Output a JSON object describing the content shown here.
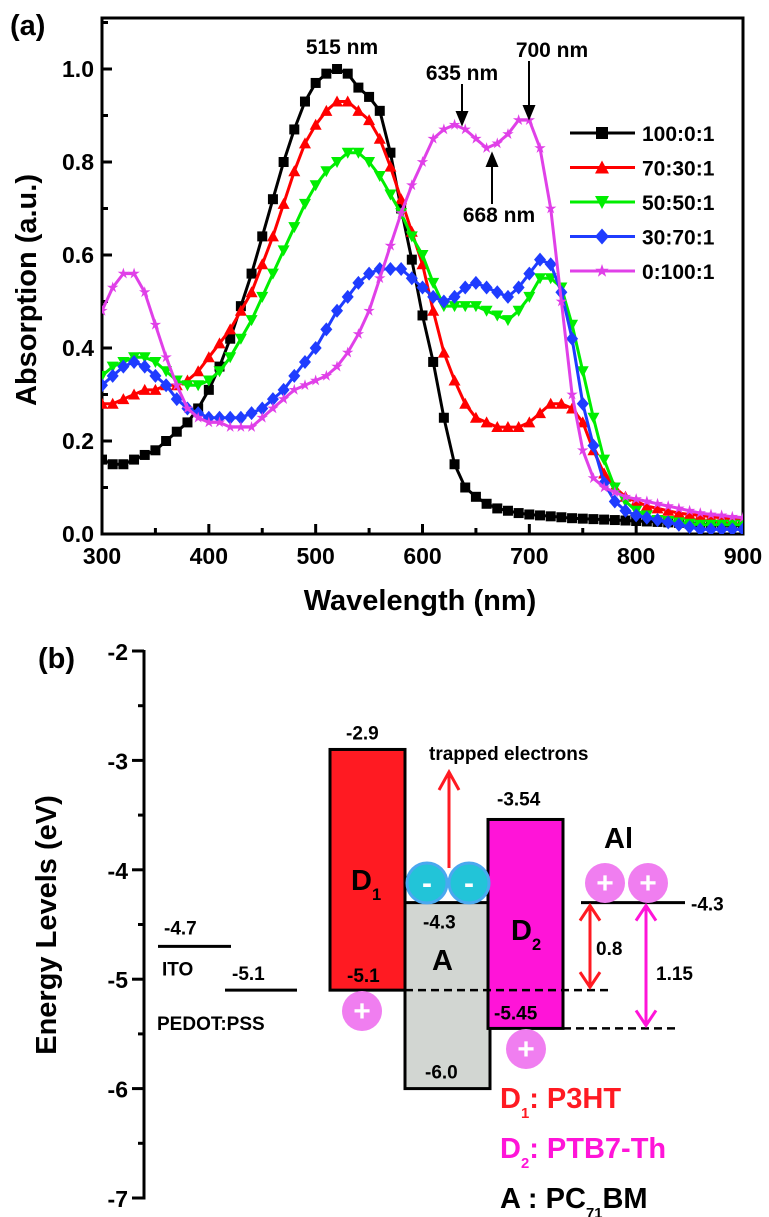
{
  "chart_data": [
    {
      "type": "line",
      "panel_label": "(a)",
      "xlabel": "Wavelength (nm)",
      "ylabel": "Absorption (a.u.)",
      "xlim": [
        300,
        900
      ],
      "ylim": [
        0,
        1.1
      ],
      "xticks": [
        "300",
        "400",
        "500",
        "600",
        "700",
        "800",
        "900"
      ],
      "yticks": [
        "0.0",
        "0.2",
        "0.4",
        "0.6",
        "0.8",
        "1.0"
      ],
      "grid": false,
      "legend_placement": "right",
      "annotations": [
        {
          "text": "515 nm",
          "x": 515
        },
        {
          "text": "635 nm",
          "x": 635,
          "arrow": "down"
        },
        {
          "text": "700 nm",
          "x": 700,
          "arrow": "down"
        },
        {
          "text": "668 nm",
          "x": 668,
          "arrow": "up"
        }
      ],
      "x": [
        300,
        310,
        320,
        330,
        340,
        350,
        360,
        370,
        380,
        390,
        400,
        410,
        420,
        430,
        440,
        450,
        460,
        470,
        480,
        490,
        500,
        510,
        520,
        530,
        540,
        550,
        560,
        570,
        580,
        590,
        600,
        610,
        620,
        630,
        640,
        650,
        660,
        670,
        680,
        690,
        700,
        710,
        720,
        730,
        740,
        750,
        760,
        770,
        780,
        790,
        800,
        810,
        820,
        830,
        840,
        850,
        860,
        870,
        880,
        890,
        900
      ],
      "series": [
        {
          "name": "100:0:1",
          "color": "#000000",
          "marker": "square",
          "values": [
            0.16,
            0.15,
            0.15,
            0.16,
            0.17,
            0.18,
            0.2,
            0.22,
            0.24,
            0.27,
            0.31,
            0.36,
            0.42,
            0.49,
            0.56,
            0.64,
            0.72,
            0.8,
            0.87,
            0.93,
            0.97,
            0.99,
            1.0,
            0.99,
            0.96,
            0.94,
            0.91,
            0.82,
            0.7,
            0.59,
            0.47,
            0.37,
            0.25,
            0.15,
            0.1,
            0.08,
            0.065,
            0.055,
            0.05,
            0.045,
            0.042,
            0.04,
            0.038,
            0.036,
            0.034,
            0.033,
            0.032,
            0.031,
            0.03,
            0.029,
            0.028,
            0.027,
            0.026,
            0.025,
            0.024,
            0.022,
            0.021,
            0.02,
            0.019,
            0.019,
            0.018
          ]
        },
        {
          "name": "70:30:1",
          "color": "#ff0000",
          "marker": "triangle-up",
          "values": [
            0.28,
            0.28,
            0.29,
            0.3,
            0.31,
            0.31,
            0.32,
            0.32,
            0.33,
            0.35,
            0.38,
            0.41,
            0.44,
            0.48,
            0.52,
            0.58,
            0.64,
            0.71,
            0.78,
            0.84,
            0.88,
            0.91,
            0.93,
            0.93,
            0.91,
            0.89,
            0.85,
            0.79,
            0.72,
            0.65,
            0.58,
            0.48,
            0.39,
            0.33,
            0.28,
            0.25,
            0.24,
            0.23,
            0.23,
            0.23,
            0.24,
            0.26,
            0.28,
            0.28,
            0.27,
            0.24,
            0.18,
            0.13,
            0.1,
            0.08,
            0.07,
            0.06,
            0.055,
            0.05,
            0.045,
            0.042,
            0.04,
            0.037,
            0.035,
            0.032,
            0.03
          ]
        },
        {
          "name": "50:50:1",
          "color": "#00ee00",
          "marker": "triangle-down",
          "values": [
            0.34,
            0.36,
            0.37,
            0.38,
            0.38,
            0.37,
            0.35,
            0.33,
            0.32,
            0.32,
            0.33,
            0.35,
            0.38,
            0.42,
            0.46,
            0.51,
            0.56,
            0.61,
            0.66,
            0.71,
            0.75,
            0.78,
            0.8,
            0.82,
            0.82,
            0.8,
            0.77,
            0.73,
            0.69,
            0.64,
            0.6,
            0.54,
            0.49,
            0.49,
            0.49,
            0.49,
            0.48,
            0.47,
            0.46,
            0.48,
            0.51,
            0.55,
            0.55,
            0.53,
            0.45,
            0.35,
            0.25,
            0.16,
            0.1,
            0.07,
            0.05,
            0.04,
            0.03,
            0.028,
            0.025,
            0.022,
            0.02,
            0.02,
            0.02,
            0.02,
            0.02
          ]
        },
        {
          "name": "30:70:1",
          "color": "#1f3cff",
          "marker": "diamond",
          "values": [
            0.32,
            0.34,
            0.36,
            0.37,
            0.36,
            0.34,
            0.32,
            0.29,
            0.27,
            0.26,
            0.25,
            0.25,
            0.25,
            0.25,
            0.26,
            0.27,
            0.29,
            0.31,
            0.34,
            0.37,
            0.4,
            0.44,
            0.48,
            0.51,
            0.54,
            0.56,
            0.57,
            0.57,
            0.57,
            0.55,
            0.53,
            0.51,
            0.5,
            0.51,
            0.53,
            0.54,
            0.53,
            0.52,
            0.51,
            0.53,
            0.56,
            0.59,
            0.58,
            0.52,
            0.42,
            0.28,
            0.19,
            0.11,
            0.07,
            0.05,
            0.04,
            0.035,
            0.03,
            0.025,
            0.02,
            0.015,
            0.01,
            0.01,
            0.01,
            0.01,
            0.01
          ]
        },
        {
          "name": "0:100:1",
          "color": "#e040e8",
          "marker": "star",
          "values": [
            0.48,
            0.53,
            0.56,
            0.56,
            0.52,
            0.45,
            0.38,
            0.32,
            0.27,
            0.25,
            0.24,
            0.24,
            0.23,
            0.23,
            0.23,
            0.25,
            0.27,
            0.29,
            0.31,
            0.32,
            0.33,
            0.34,
            0.36,
            0.39,
            0.43,
            0.48,
            0.55,
            0.62,
            0.69,
            0.75,
            0.8,
            0.85,
            0.87,
            0.88,
            0.87,
            0.85,
            0.83,
            0.84,
            0.86,
            0.89,
            0.89,
            0.83,
            0.7,
            0.5,
            0.3,
            0.18,
            0.12,
            0.1,
            0.09,
            0.08,
            0.075,
            0.07,
            0.065,
            0.06,
            0.055,
            0.05,
            0.045,
            0.042,
            0.04,
            0.037,
            0.035
          ]
        }
      ]
    },
    {
      "type": "diagram",
      "panel_label": "(b)",
      "ylabel": "Energy Levels (eV)",
      "ylim": [
        -7,
        -2
      ],
      "yticks": [
        "-2",
        "-3",
        "-4",
        "-5",
        "-6",
        "-7"
      ],
      "colors": {
        "D1": "#ff1a22",
        "D2": "#ff14d8",
        "A": "#d2d6d2",
        "electron": "#22c4d8",
        "hole": "#f07ef0",
        "arrow_red": "#ff1a22",
        "arrow_magenta": "#ff14d8"
      },
      "electrodes": [
        {
          "name": "ITO",
          "level": -4.7,
          "label": "-4.7"
        },
        {
          "name": "PEDOT:PSS",
          "level": -5.1,
          "label": "-5.1"
        },
        {
          "name": "Al",
          "level": -4.3,
          "label": "-4.3"
        }
      ],
      "materials": [
        {
          "key": "D1",
          "symbol": "D",
          "sub": "1",
          "lumo": -2.9,
          "homo": -5.1,
          "lumo_label": "-2.9",
          "homo_label": "-5.1"
        },
        {
          "key": "A",
          "symbol": "A",
          "sub": "",
          "lumo": -4.3,
          "homo": -6.0,
          "lumo_label": "-4.3",
          "homo_label": "-6.0"
        },
        {
          "key": "D2",
          "symbol": "D",
          "sub": "2",
          "lumo": -3.54,
          "homo": -5.45,
          "lumo_label": "-3.54",
          "homo_label": "-5.45"
        }
      ],
      "trapped_label": "trapped electrons",
      "electron_symbol": "-",
      "hole_symbol": "+",
      "gaps": [
        {
          "label": "0.8",
          "from": -4.3,
          "to": -5.1
        },
        {
          "label": "1.15",
          "from": -4.3,
          "to": -5.45
        }
      ],
      "legend": [
        {
          "symbol": "D",
          "sub": "1",
          "text": ": P3HT"
        },
        {
          "symbol": "D",
          "sub": "2",
          "text": ": PTB7-Th"
        },
        {
          "symbol": "A : PC",
          "sub": "71",
          "text": "BM"
        }
      ]
    }
  ]
}
